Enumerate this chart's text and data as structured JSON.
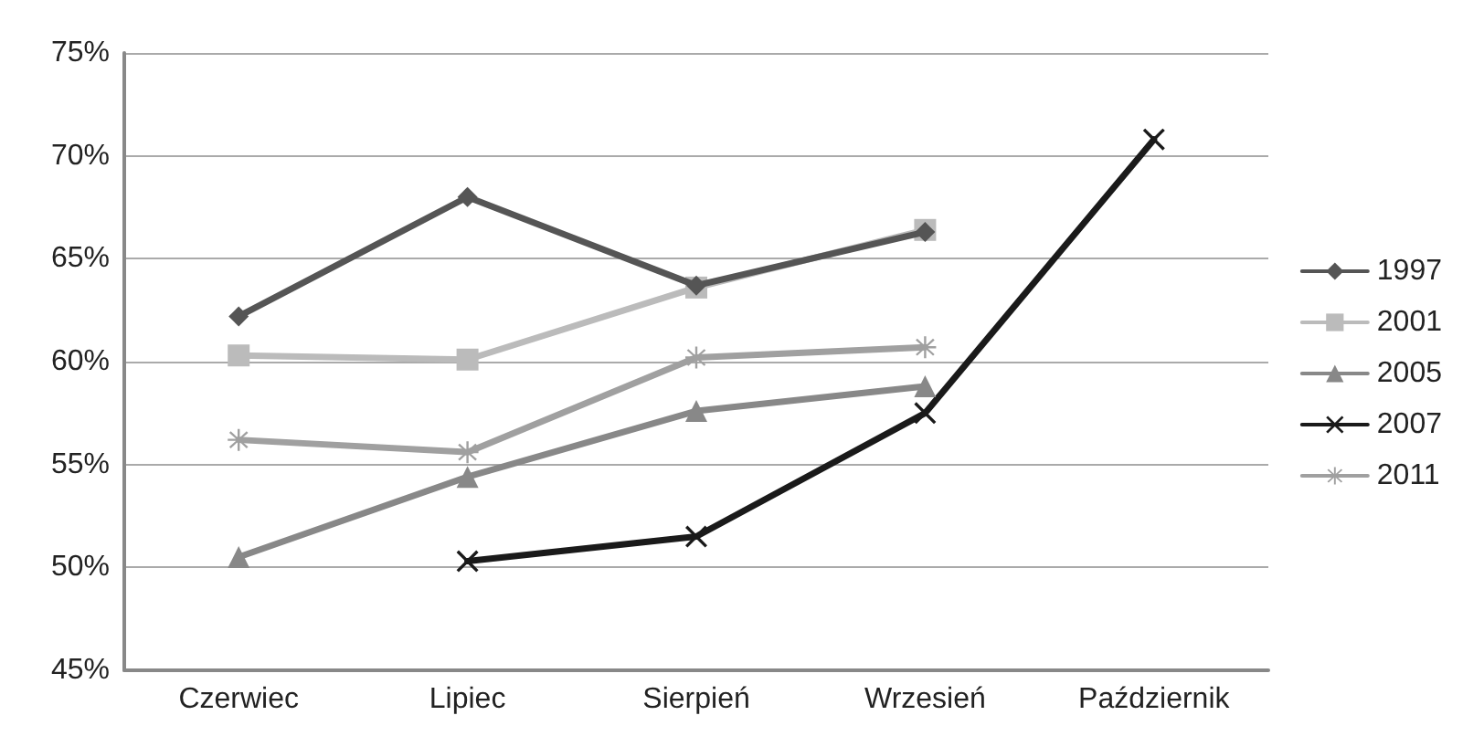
{
  "chart_data": {
    "type": "line",
    "categories": [
      "Czerwiec",
      "Lipiec",
      "Sierpień",
      "Wrzesień",
      "Październik"
    ],
    "ylim": [
      45,
      75
    ],
    "yticks": [
      {
        "value": 45,
        "label": "45%"
      },
      {
        "value": 50,
        "label": "50%"
      },
      {
        "value": 55,
        "label": "55%"
      },
      {
        "value": 60,
        "label": "60%"
      },
      {
        "value": 65,
        "label": "65%"
      },
      {
        "value": 70,
        "label": "70%"
      },
      {
        "value": 75,
        "label": "75%"
      }
    ],
    "grid": "y",
    "legend": "right",
    "line_style": "solid",
    "series": [
      {
        "name": "1997",
        "color": "#555555",
        "marker": "diamond",
        "values": [
          62.2,
          68.0,
          63.7,
          66.3,
          null
        ]
      },
      {
        "name": "2001",
        "color": "#bbbbbb",
        "marker": "square",
        "values": [
          60.3,
          60.1,
          63.6,
          66.4,
          null
        ]
      },
      {
        "name": "2005",
        "color": "#888888",
        "marker": "triangle",
        "values": [
          50.5,
          54.4,
          57.6,
          58.8,
          null
        ]
      },
      {
        "name": "2007",
        "color": "#1a1a1a",
        "marker": "cross",
        "values": [
          null,
          50.3,
          51.5,
          57.5,
          70.8
        ]
      },
      {
        "name": "2011",
        "color": "#a0a0a0",
        "marker": "star",
        "values": [
          56.2,
          55.6,
          60.2,
          60.7,
          null
        ]
      }
    ]
  }
}
